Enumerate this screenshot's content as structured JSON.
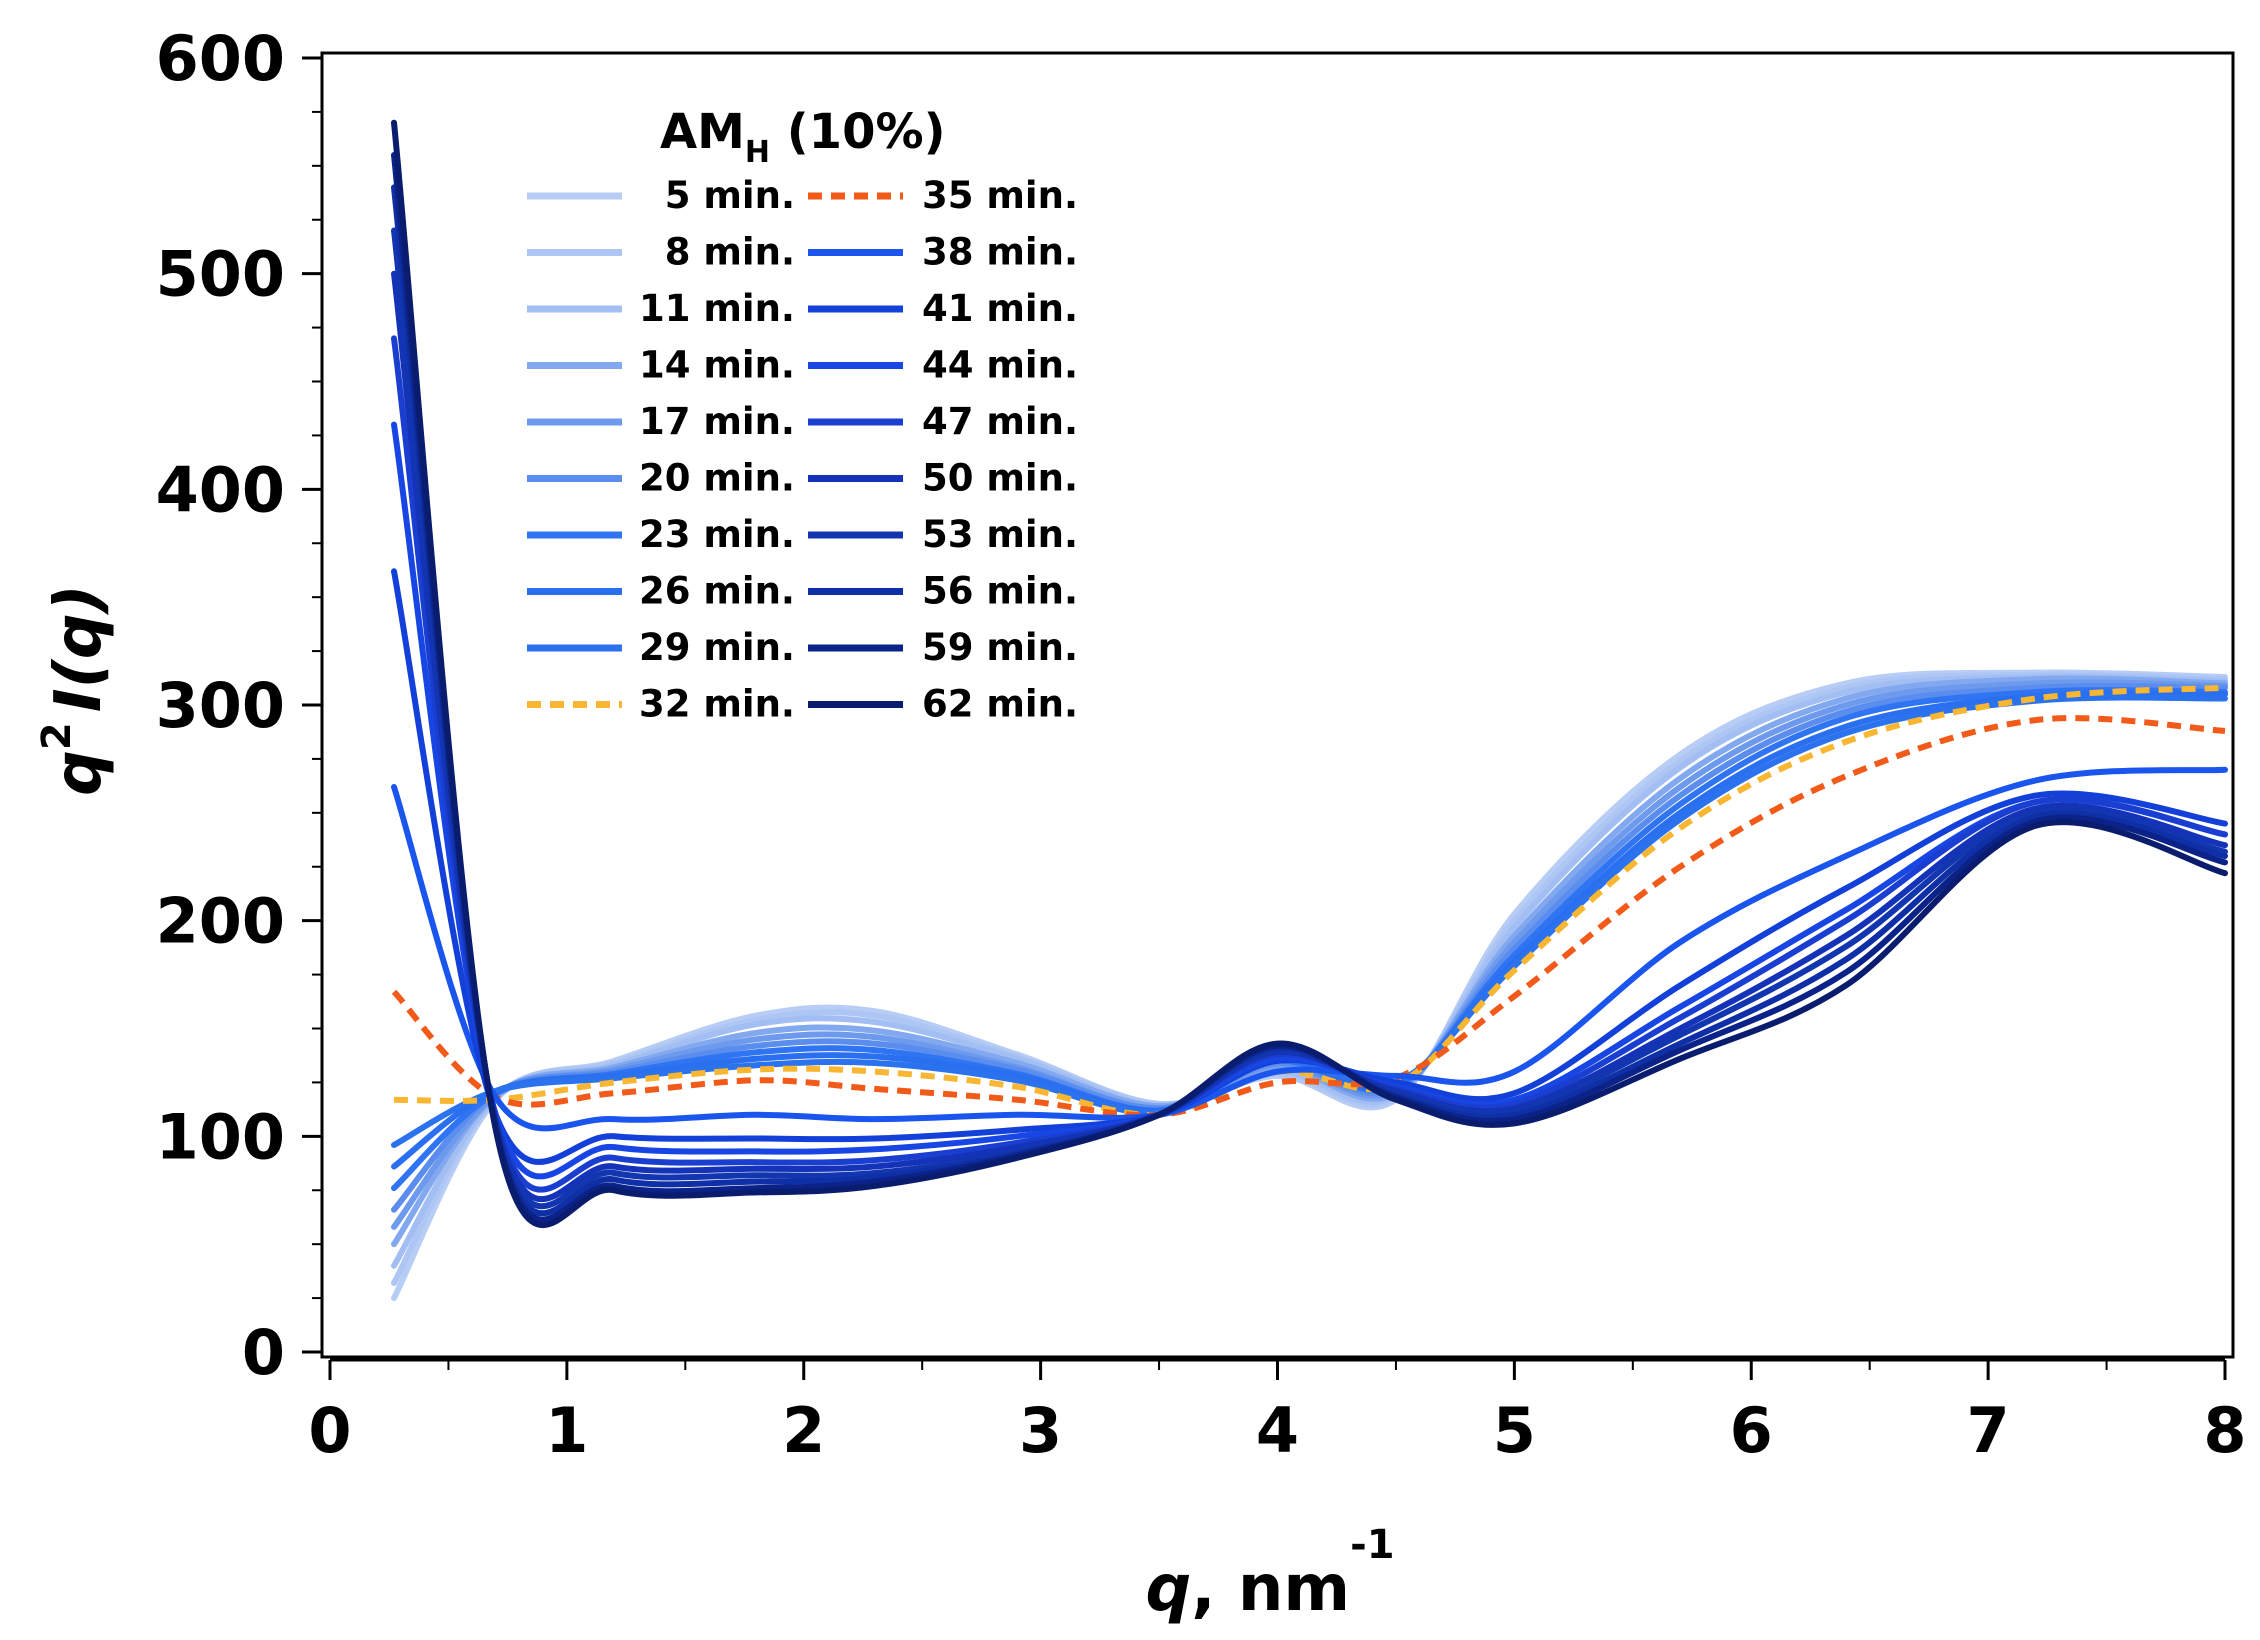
{
  "chart_data": {
    "type": "line",
    "title": "",
    "xlabel": {
      "symbol": "q",
      "rest": ", nm",
      "superscript": "-1"
    },
    "ylabel": {
      "prefix": "q",
      "superscript": "2",
      "rest": "I(q)"
    },
    "xlim": [
      0,
      8
    ],
    "ylim": [
      0,
      600
    ],
    "xticks": [
      0,
      1,
      2,
      3,
      4,
      5,
      6,
      7,
      8
    ],
    "yticks": [
      0,
      100,
      200,
      300,
      400,
      500,
      600
    ],
    "grid": false,
    "legend": {
      "placement": "top-left",
      "title": {
        "main": "AM",
        "subscript": "H",
        "suffix": " (10%)"
      }
    },
    "series": [
      {
        "name": "5 min.",
        "color": "#b7cdf5",
        "dashed": false,
        "y": [
          25,
          117,
          135,
          156,
          158,
          138,
          115,
          128,
          117,
          203,
          277,
          310,
          315,
          313
        ]
      },
      {
        "name": "8 min.",
        "color": "#adc6f4",
        "dashed": false,
        "y": [
          32,
          118,
          134,
          154,
          156,
          137,
          115,
          129,
          118,
          200,
          274,
          308,
          314,
          312
        ]
      },
      {
        "name": "11 min.",
        "color": "#a2bef3",
        "dashed": false,
        "y": [
          40,
          118,
          133,
          152,
          153,
          136,
          114,
          130,
          119,
          197,
          271,
          306,
          313,
          311
        ]
      },
      {
        "name": "14 min.",
        "color": "#82a8f0",
        "dashed": false,
        "y": [
          50,
          119,
          132,
          148,
          149,
          134,
          114,
          132,
          120,
          193,
          266,
          303,
          312,
          310
        ]
      },
      {
        "name": "17 min.",
        "color": "#6e9aee",
        "dashed": false,
        "y": [
          58,
          119,
          131,
          145,
          146,
          132,
          113,
          133,
          121,
          190,
          262,
          300,
          310,
          309
        ]
      },
      {
        "name": "20 min.",
        "color": "#5a8dee",
        "dashed": false,
        "y": [
          66,
          120,
          130,
          142,
          143,
          131,
          113,
          134,
          122,
          187,
          258,
          297,
          308,
          308
        ]
      },
      {
        "name": "23 min.",
        "color": "#2f74f2",
        "dashed": false,
        "y": [
          76,
          120,
          129,
          139,
          140,
          129,
          112,
          135,
          123,
          184,
          254,
          294,
          306,
          306
        ]
      },
      {
        "name": "26 min.",
        "color": "#2a6ff0",
        "dashed": false,
        "y": [
          86,
          121,
          128,
          136,
          137,
          128,
          112,
          136,
          124,
          181,
          250,
          290,
          304,
          305
        ]
      },
      {
        "name": "29 min.",
        "color": "#2a72ee",
        "dashed": false,
        "y": [
          96,
          121,
          127,
          133,
          134,
          126,
          111,
          137,
          125,
          179,
          247,
          287,
          302,
          303
        ]
      },
      {
        "name": "32 min.",
        "color": "#f8b632",
        "dashed": true,
        "y": [
          117,
          117,
          125,
          131,
          130,
          123,
          110,
          130,
          124,
          177,
          243,
          283,
          303,
          308
        ]
      },
      {
        "name": "35 min.",
        "color": "#f25a1a",
        "dashed": true,
        "y": [
          167,
          118,
          120,
          126,
          122,
          117,
          110,
          125,
          127,
          165,
          225,
          267,
          293,
          288
        ]
      },
      {
        "name": "38 min.",
        "color": "#1a55ee",
        "dashed": false,
        "y": [
          262,
          118,
          108,
          110,
          108,
          110,
          110,
          130,
          128,
          130,
          190,
          230,
          265,
          270
        ]
      },
      {
        "name": "41 min.",
        "color": "#1240d8",
        "dashed": false,
        "y": [
          362,
          110,
          100,
          99,
          99,
          103,
          110,
          135,
          125,
          120,
          170,
          215,
          258,
          245
        ]
      },
      {
        "name": "44 min.",
        "color": "#1746e4",
        "dashed": false,
        "y": [
          430,
          110,
          95,
          93,
          94,
          100,
          110,
          136,
          123,
          117,
          160,
          205,
          255,
          240
        ]
      },
      {
        "name": "47 min.",
        "color": "#1a3fd0",
        "dashed": false,
        "y": [
          470,
          108,
          90,
          88,
          89,
          97,
          110,
          138,
          122,
          115,
          155,
          200,
          255,
          240
        ]
      },
      {
        "name": "50 min.",
        "color": "#1433b8",
        "dashed": false,
        "y": [
          500,
          107,
          86,
          85,
          86,
          95,
          110,
          139,
          121,
          113,
          150,
          193,
          252,
          235
        ]
      },
      {
        "name": "53 min.",
        "color": "#1236b0",
        "dashed": false,
        "y": [
          520,
          106,
          83,
          82,
          83,
          93,
          110,
          140,
          120,
          112,
          147,
          188,
          250,
          232
        ]
      },
      {
        "name": "56 min.",
        "color": "#0f2fa6",
        "dashed": false,
        "y": [
          540,
          105,
          80,
          79,
          81,
          92,
          110,
          141,
          119,
          110,
          143,
          182,
          248,
          230
        ]
      },
      {
        "name": "59 min.",
        "color": "#0b2388",
        "dashed": false,
        "y": [
          555,
          104,
          77,
          76,
          79,
          91,
          110,
          142,
          118,
          108,
          140,
          176,
          246,
          227
        ]
      },
      {
        "name": "62 min.",
        "color": "#0a1c6e",
        "dashed": false,
        "y": [
          570,
          103,
          75,
          74,
          77,
          90,
          110,
          143,
          117,
          106,
          136,
          170,
          244,
          222
        ]
      }
    ],
    "x": [
      0.27,
      0.7,
      1.2,
      1.8,
      2.3,
      2.9,
      3.5,
      4.0,
      4.5,
      5.0,
      5.7,
      6.4,
      7.2,
      8.0
    ]
  }
}
